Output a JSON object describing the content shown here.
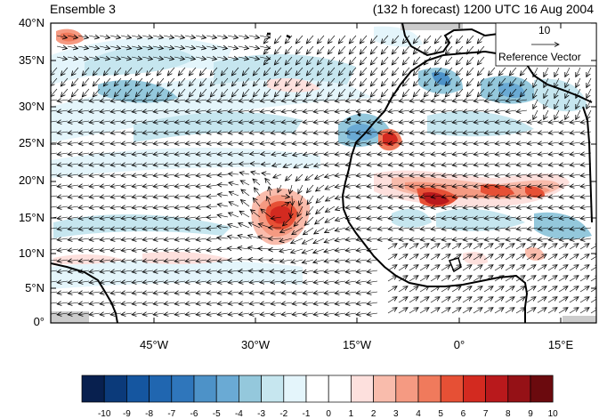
{
  "titles": {
    "left": "Ensemble 3",
    "right": "(132 h forecast) 1200 UTC 16 Aug 2004"
  },
  "reference_vector": {
    "magnitude": "10",
    "label": "Reference Vector"
  },
  "lat_labels": [
    "40°N",
    "35°N",
    "30°N",
    "25°N",
    "20°N",
    "15°N",
    "10°N",
    "5°N",
    "0°"
  ],
  "lon_labels": [
    "45°W",
    "30°W",
    "15°W",
    "0°",
    "15°E"
  ],
  "colorbar": {
    "labels": [
      "-10",
      "-9",
      "-8",
      "-7",
      "-6",
      "-5",
      "-4",
      "-3",
      "-2",
      "-1",
      "0",
      "1",
      "2",
      "3",
      "4",
      "5",
      "6",
      "7",
      "8",
      "9",
      "10"
    ],
    "colors": [
      "#08204f",
      "#0b3a7a",
      "#1556a0",
      "#2066b0",
      "#2f76bb",
      "#4d92c8",
      "#6aaad4",
      "#94c8dc",
      "#c6e6ef",
      "#e4f5fb",
      "#ffffff",
      "#ffffff",
      "#fde0dd",
      "#f9bcac",
      "#f59a82",
      "#f07a5c",
      "#e65035",
      "#d32a20",
      "#b9191c",
      "#951116",
      "#6b0a0e"
    ]
  },
  "colors": {
    "land_outline": "#000000",
    "frame": "#000000",
    "arrow": "#000000"
  }
}
